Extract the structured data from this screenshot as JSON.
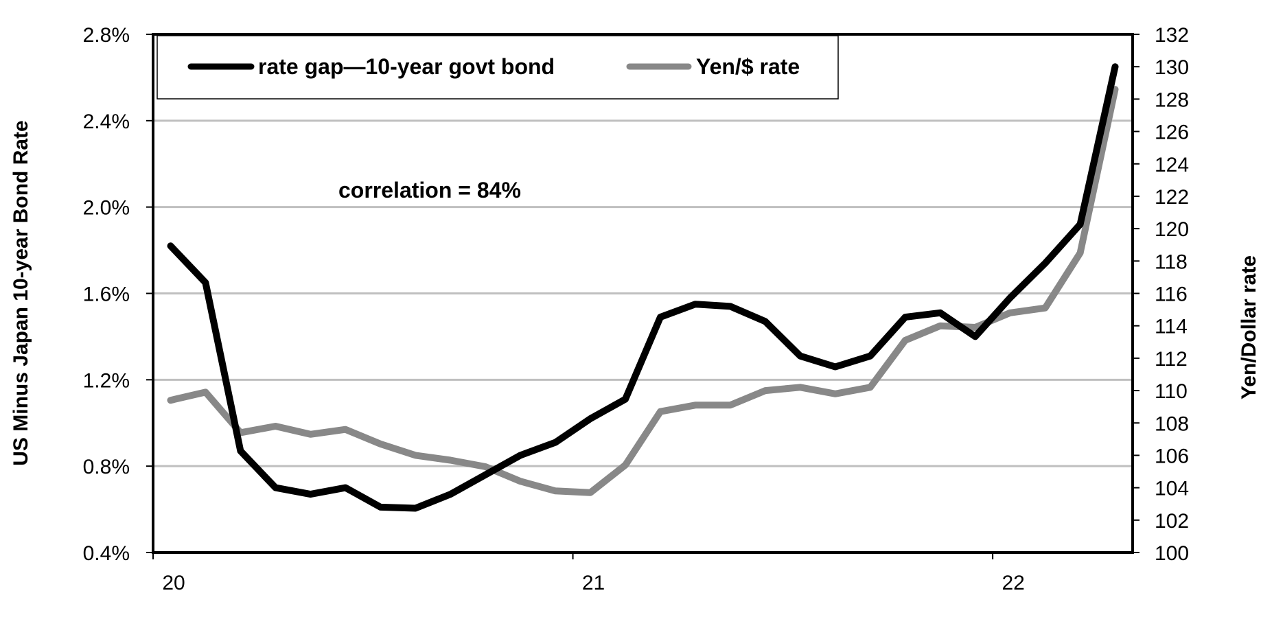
{
  "chart_data": {
    "type": "line",
    "annotation": "correlation = 84%",
    "yleft": {
      "label": "US Minus Japan 10-year Bond Rate",
      "range": [
        0.4,
        2.8
      ],
      "ticks": [
        0.4,
        0.8,
        1.2,
        1.6,
        2.0,
        2.4,
        2.8
      ],
      "tick_labels": [
        "0.4%",
        "0.8%",
        "1.2%",
        "1.6%",
        "2.0%",
        "2.4%",
        "2.8%"
      ]
    },
    "yright": {
      "label": "Yen/Dollar rate",
      "range": [
        100,
        132
      ],
      "ticks": [
        100,
        102,
        104,
        106,
        108,
        110,
        112,
        114,
        116,
        118,
        120,
        122,
        124,
        126,
        128,
        130,
        132
      ],
      "tick_labels": [
        "100",
        "102",
        "104",
        "106",
        "108",
        "110",
        "112",
        "114",
        "116",
        "118",
        "120",
        "122",
        "124",
        "126",
        "128",
        "130",
        "132"
      ]
    },
    "x": {
      "range": [
        0,
        28
      ],
      "ticks": [
        0,
        12,
        24
      ],
      "tick_labels": [
        "20",
        "21",
        "22"
      ]
    },
    "gridlines": true,
    "legend_position": "top-left",
    "series": [
      {
        "name": "rate gap—10-year govt bond",
        "axis": "left",
        "color": "#000000",
        "x": [
          0.5,
          1.5,
          2.5,
          3.5,
          4.5,
          5.5,
          6.5,
          7.5,
          8.5,
          9.5,
          10.5,
          11.5,
          12.5,
          13.5,
          14.5,
          15.5,
          16.5,
          17.5,
          18.5,
          19.5,
          20.5,
          21.5,
          22.5,
          23.5,
          24.5,
          25.5,
          26.5,
          27.5
        ],
        "values": [
          1.82,
          1.65,
          0.87,
          0.7,
          0.67,
          0.7,
          0.61,
          0.605,
          0.67,
          0.76,
          0.85,
          0.91,
          1.02,
          1.11,
          1.49,
          1.55,
          1.54,
          1.47,
          1.31,
          1.26,
          1.31,
          1.49,
          1.51,
          1.4,
          1.58,
          1.74,
          1.92,
          2.65
        ]
      },
      {
        "name": "Yen/$ rate",
        "axis": "right",
        "color": "#888888",
        "x": [
          0.5,
          1.5,
          2.5,
          3.5,
          4.5,
          5.5,
          6.5,
          7.5,
          8.5,
          9.5,
          10.5,
          11.5,
          12.5,
          13.5,
          14.5,
          15.5,
          16.5,
          17.5,
          18.5,
          19.5,
          20.5,
          21.5,
          22.5,
          23.5,
          24.5,
          25.5,
          26.5,
          27.5
        ],
        "values": [
          109.4,
          109.9,
          107.4,
          107.8,
          107.3,
          107.6,
          106.7,
          106.0,
          105.7,
          105.3,
          104.4,
          103.8,
          103.7,
          105.4,
          108.7,
          109.1,
          109.1,
          110.0,
          110.2,
          109.8,
          110.2,
          113.1,
          114.0,
          113.9,
          114.8,
          115.1,
          118.5,
          128.6
        ]
      }
    ]
  }
}
